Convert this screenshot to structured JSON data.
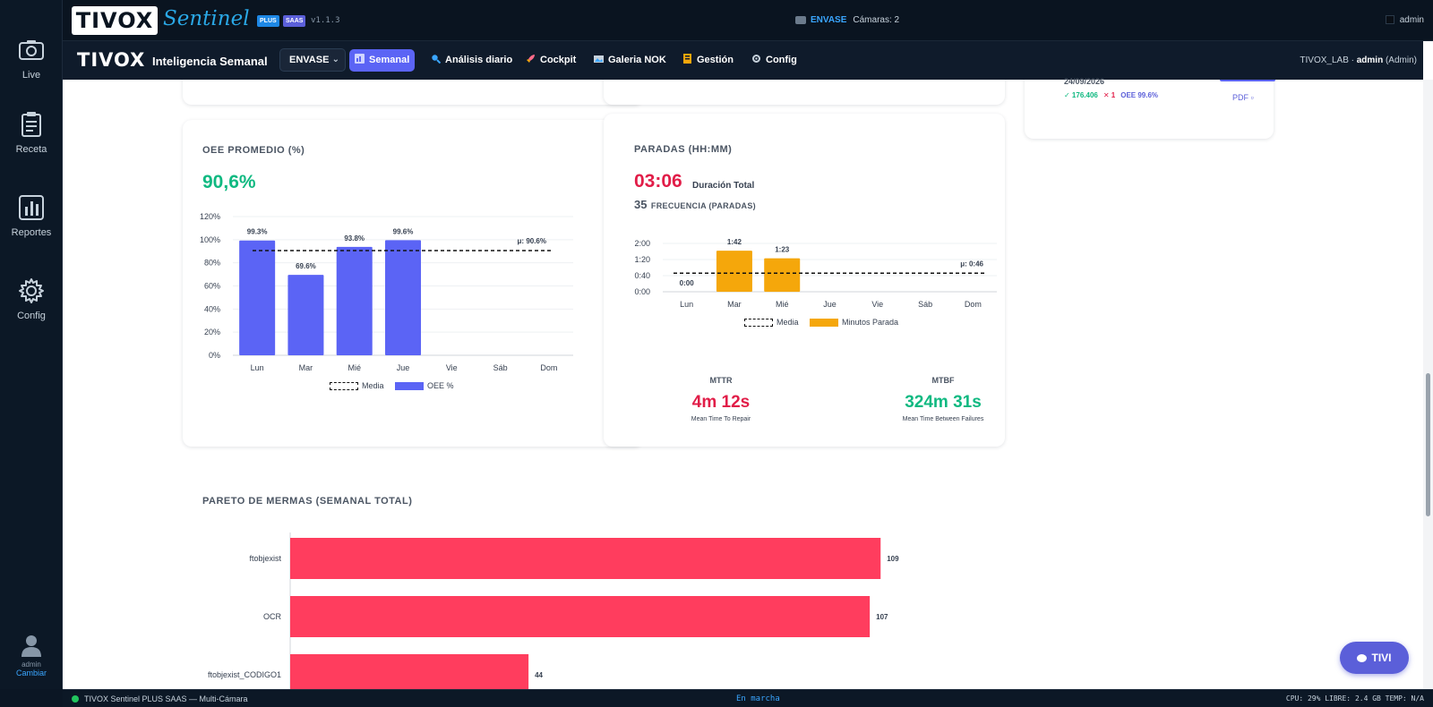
{
  "sidebar": {
    "items": [
      {
        "label": "Live",
        "icon": "camera-icon"
      },
      {
        "label": "Receta",
        "icon": "clipboard-icon"
      },
      {
        "label": "Reportes",
        "icon": "bar-chart-icon"
      },
      {
        "label": "Config",
        "icon": "gear-icon"
      }
    ],
    "user": {
      "name": "admin",
      "action": "Cambiar"
    }
  },
  "topbar": {
    "logo": "TIVOX",
    "product": "Sentinel",
    "badge_plus": "PLUS",
    "badge_saas": "SAAS",
    "version": "v1.1.3",
    "line": "ENVASE",
    "cameras": "Cámaras: 2",
    "user": "admin"
  },
  "navbar": {
    "logo": "TIVOX",
    "title": "Inteligencia Semanal",
    "line_select": "ENVASE",
    "items": [
      {
        "label": "Semanal",
        "active": true
      },
      {
        "label": "Análisis diario",
        "active": false
      },
      {
        "label": "Cockpit",
        "active": false
      },
      {
        "label": "Galeria NOK",
        "active": false
      },
      {
        "label": "Gestión",
        "active": false
      },
      {
        "label": "Config",
        "active": false
      }
    ],
    "tenant": "TIVOX_LAB · ",
    "tenant_user": "admin",
    "tenant_role": " (Admin)"
  },
  "summary_panel": {
    "date": "24/09/2026",
    "ok": "✓ 176.406",
    "nok": "✕ 1",
    "oee": "OEE 99.6%",
    "pdf": "PDF ▫"
  },
  "oee_card": {
    "title": "OEE PROMEDIO (%)",
    "value": "90,6%",
    "mean_label": "μ: 90.6%",
    "legend_media": "Media",
    "legend_series": "OEE %",
    "colors": {
      "bar": "#5b64f5"
    }
  },
  "paradas_card": {
    "title": "PARADAS (HH:MM)",
    "duration": "03:06",
    "duration_label": "Duración Total",
    "freq": "35",
    "freq_label": "FRECUENCIA (PARADAS)",
    "mean_label": "μ: 0:46",
    "legend_media": "Media",
    "legend_series": "Minutos Parada",
    "colors": {
      "bar": "#f5a70b"
    },
    "mttr_title": "MTTR",
    "mttr_value": "4m 12s",
    "mttr_desc": "Mean Time To Repair",
    "mtbf_title": "MTBF",
    "mtbf_value": "324m 31s",
    "mtbf_desc": "Mean Time Between Failures"
  },
  "pareto": {
    "title": "PARETO DE MERMAS (SEMANAL TOTAL)",
    "color": "#ff3d5e"
  },
  "chart_data": [
    {
      "type": "bar",
      "title": "OEE PROMEDIO (%)",
      "categories": [
        "Lun",
        "Mar",
        "Mié",
        "Jue",
        "Vie",
        "Sáb",
        "Dom"
      ],
      "series": [
        {
          "name": "OEE %",
          "values": [
            99.3,
            69.6,
            93.8,
            99.6,
            null,
            null,
            null
          ],
          "labels": [
            "99.3%",
            "69.6%",
            "93.8%",
            "99.6%",
            "",
            "",
            ""
          ]
        },
        {
          "name": "Media",
          "type": "line",
          "values": [
            90.6,
            90.6,
            90.6,
            90.6,
            90.6,
            90.6,
            90.6
          ]
        }
      ],
      "yticks": [
        "0%",
        "20%",
        "40%",
        "60%",
        "80%",
        "100%",
        "120%"
      ],
      "ylim": [
        0,
        120
      ],
      "legend": "bottom"
    },
    {
      "type": "bar",
      "title": "PARADAS (HH:MM)",
      "categories": [
        "Lun",
        "Mar",
        "Mié",
        "Jue",
        "Vie",
        "Sáb",
        "Dom"
      ],
      "series": [
        {
          "name": "Minutos Parada",
          "values": [
            0,
            102,
            83,
            null,
            null,
            null,
            null
          ],
          "labels": [
            "0:00",
            "1:42",
            "1:23",
            "",
            "",
            "",
            ""
          ]
        },
        {
          "name": "Media",
          "type": "line",
          "values": [
            46,
            46,
            46,
            46,
            46,
            46,
            46
          ]
        }
      ],
      "yticks": [
        "0:00",
        "0:40",
        "1:20",
        "2:00"
      ],
      "ylim": [
        0,
        120
      ],
      "legend": "bottom"
    },
    {
      "type": "bar",
      "orientation": "horizontal",
      "title": "PARETO DE MERMAS (SEMANAL TOTAL)",
      "categories": [
        "ftobjexist",
        "OCR",
        "ftobjexist_CODIGO1"
      ],
      "values": [
        109,
        107,
        44
      ],
      "xlim": [
        0,
        125
      ]
    }
  ],
  "footer": {
    "status": "TIVOX Sentinel PLUS SAAS — Multi-Cámara",
    "state": "En marcha",
    "system": "CPU: 29%  LIBRE: 2.4 GB  TEMP: N/A"
  },
  "assistant": {
    "label": "TIVI"
  }
}
